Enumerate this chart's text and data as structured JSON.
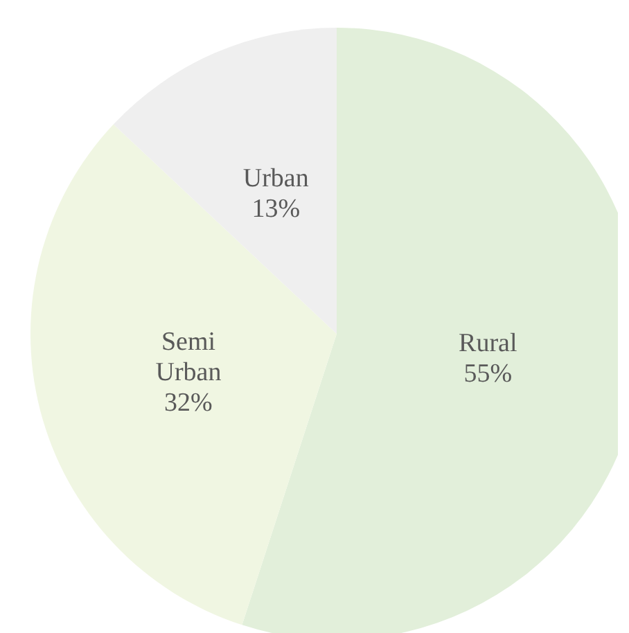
{
  "chart_data": {
    "type": "pie",
    "categories": [
      "Rural",
      "Semi Urban",
      "Urban"
    ],
    "values": [
      55,
      32,
      13
    ],
    "value_labels": [
      "55%",
      "32%",
      "13%"
    ],
    "colors": [
      "#e2efda",
      "#f0f6e2",
      "#efefef"
    ],
    "legend": false
  }
}
